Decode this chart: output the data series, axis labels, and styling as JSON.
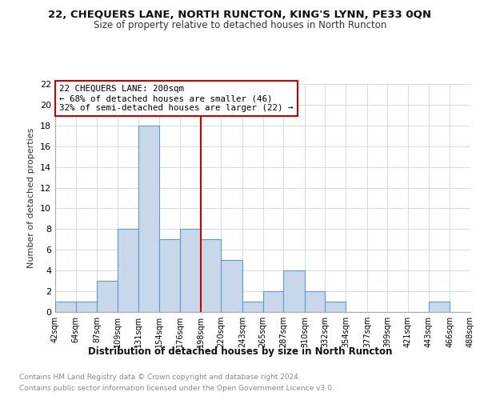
{
  "title1": "22, CHEQUERS LANE, NORTH RUNCTON, KING'S LYNN, PE33 0QN",
  "title2": "Size of property relative to detached houses in North Runcton",
  "xlabel": "Distribution of detached houses by size in North Runcton",
  "ylabel": "Number of detached properties",
  "bin_edges": [
    42,
    64,
    87,
    109,
    131,
    154,
    176,
    198,
    220,
    243,
    265,
    287,
    310,
    332,
    354,
    377,
    399,
    421,
    443,
    466,
    488
  ],
  "bar_heights": [
    1,
    1,
    3,
    8,
    18,
    7,
    8,
    7,
    5,
    1,
    2,
    4,
    2,
    1,
    0,
    0,
    0,
    0,
    1,
    0
  ],
  "bar_color": "#c8d8ea",
  "bar_edge_color": "#5b9bd5",
  "vline_x": 198,
  "vline_color": "#cc0000",
  "annotation_text": "22 CHEQUERS LANE: 200sqm\n← 68% of detached houses are smaller (46)\n32% of semi-detached houses are larger (22) →",
  "annotation_box_color": "#cc0000",
  "yticks": [
    0,
    2,
    4,
    6,
    8,
    10,
    12,
    14,
    16,
    18,
    20,
    22
  ],
  "ylim": [
    0,
    22
  ],
  "xlim": [
    42,
    488
  ],
  "footer_line1": "Contains HM Land Registry data © Crown copyright and database right 2024.",
  "footer_line2": "Contains public sector information licensed under the Open Government Licence v3.0.",
  "background_color": "#ffffff",
  "grid_color": "#d0dce8"
}
